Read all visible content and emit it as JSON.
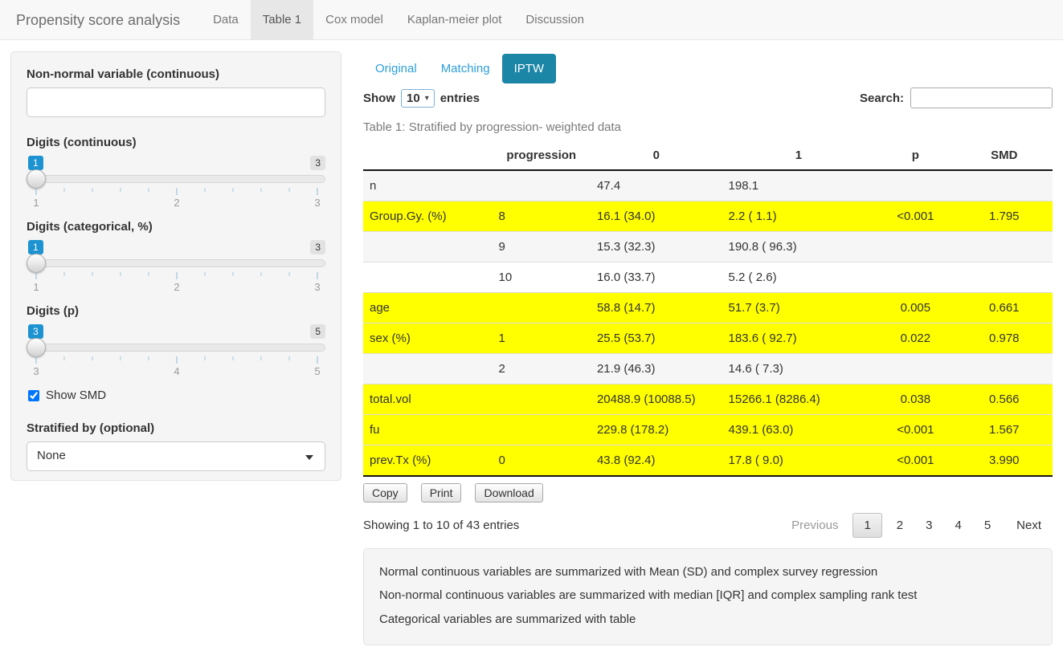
{
  "colors": {
    "primary": "#1b86a6",
    "link": "#2d9fd8",
    "highlight": "#ffff00",
    "badge_blue": "#1d93d2"
  },
  "navbar": {
    "brand": "Propensity score analysis",
    "tabs": [
      {
        "label": "Data",
        "active": false
      },
      {
        "label": "Table 1",
        "active": true
      },
      {
        "label": "Cox model",
        "active": false
      },
      {
        "label": "Kaplan-meier plot",
        "active": false
      },
      {
        "label": "Discussion",
        "active": false
      }
    ]
  },
  "sidebar": {
    "nonnormal": {
      "label": "Non-normal variable (continuous)",
      "value": "",
      "placeholder": ""
    },
    "sliders": [
      {
        "label": "Digits (continuous)",
        "value": "1",
        "max": "3",
        "ticks": [
          "1",
          "2",
          "3"
        ]
      },
      {
        "label": "Digits (categorical, %)",
        "value": "1",
        "max": "3",
        "ticks": [
          "1",
          "2",
          "3"
        ]
      },
      {
        "label": "Digits (p)",
        "value": "3",
        "max": "5",
        "ticks": [
          "3",
          "4",
          "5"
        ]
      }
    ],
    "show_smd": {
      "label": "Show SMD",
      "checked": true
    },
    "stratified": {
      "label": "Stratified by (optional)",
      "value": "None"
    }
  },
  "main": {
    "pills": [
      {
        "label": "Original",
        "active": false
      },
      {
        "label": "Matching",
        "active": false
      },
      {
        "label": "IPTW",
        "active": true
      }
    ],
    "length_control": {
      "before": "Show",
      "value": "10",
      "after": "entries"
    },
    "search": {
      "label": "Search:",
      "value": ""
    },
    "caption": "Table 1: Stratified by progression- weighted data",
    "table": {
      "headers": [
        "",
        "progression",
        "0",
        "1",
        "p",
        "SMD"
      ],
      "rows": [
        {
          "cells": [
            "n",
            "",
            "47.4",
            "198.1",
            "",
            ""
          ],
          "highlight": false
        },
        {
          "cells": [
            "Group.Gy. (%)",
            "8",
            "16.1 (34.0)",
            "2.2 ( 1.1)",
            "<0.001",
            "1.795"
          ],
          "highlight": true
        },
        {
          "cells": [
            "",
            "9",
            "15.3 (32.3)",
            "190.8 ( 96.3)",
            "",
            ""
          ],
          "highlight": false
        },
        {
          "cells": [
            "",
            "10",
            "16.0 (33.7)",
            "5.2 ( 2.6)",
            "",
            ""
          ],
          "highlight": false
        },
        {
          "cells": [
            "age",
            "",
            "58.8 (14.7)",
            "51.7 (3.7)",
            "0.005",
            "0.661"
          ],
          "highlight": true
        },
        {
          "cells": [
            "sex (%)",
            "1",
            "25.5 (53.7)",
            "183.6 ( 92.7)",
            "0.022",
            "0.978"
          ],
          "highlight": true
        },
        {
          "cells": [
            "",
            "2",
            "21.9 (46.3)",
            "14.6 ( 7.3)",
            "",
            ""
          ],
          "highlight": false
        },
        {
          "cells": [
            "total.vol",
            "",
            "20488.9 (10088.5)",
            "15266.1 (8286.4)",
            "0.038",
            "0.566"
          ],
          "highlight": true
        },
        {
          "cells": [
            "fu",
            "",
            "229.8 (178.2)",
            "439.1 (63.0)",
            "<0.001",
            "1.567"
          ],
          "highlight": true
        },
        {
          "cells": [
            "prev.Tx (%)",
            "0",
            "43.8 (92.4)",
            "17.8 ( 9.0)",
            "<0.001",
            "3.990"
          ],
          "highlight": true
        }
      ]
    },
    "buttons": [
      "Copy",
      "Print",
      "Download"
    ],
    "info": "Showing 1 to 10 of 43 entries",
    "pagination": {
      "previous": "Previous",
      "pages": [
        "1",
        "2",
        "3",
        "4",
        "5"
      ],
      "active": "1",
      "next": "Next"
    },
    "footnotes": [
      "Normal continuous variables are summarized with Mean (SD) and complex survey regression",
      "Non-normal continuous variables are summarized with median [IQR] and complex sampling rank test",
      "Categorical variables are summarized with table"
    ]
  }
}
